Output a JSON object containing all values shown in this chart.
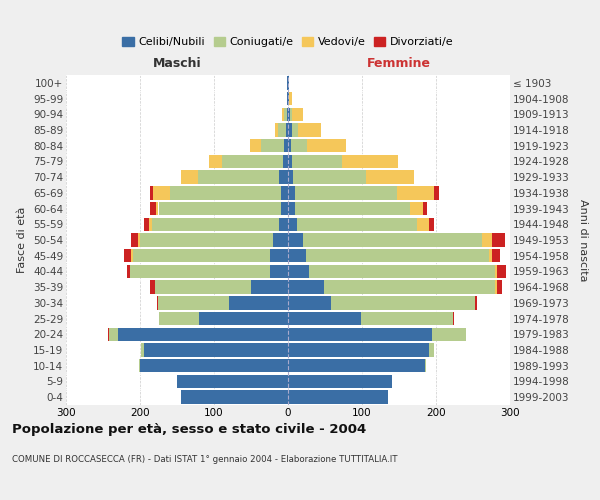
{
  "age_groups": [
    "0-4",
    "5-9",
    "10-14",
    "15-19",
    "20-24",
    "25-29",
    "30-34",
    "35-39",
    "40-44",
    "45-49",
    "50-54",
    "55-59",
    "60-64",
    "65-69",
    "70-74",
    "75-79",
    "80-84",
    "85-89",
    "90-94",
    "95-99",
    "100+"
  ],
  "birth_years": [
    "1999-2003",
    "1994-1998",
    "1989-1993",
    "1984-1988",
    "1979-1983",
    "1974-1978",
    "1969-1973",
    "1964-1968",
    "1959-1963",
    "1954-1958",
    "1949-1953",
    "1944-1948",
    "1939-1943",
    "1934-1938",
    "1929-1933",
    "1924-1928",
    "1919-1923",
    "1914-1918",
    "1909-1913",
    "1904-1908",
    "≤ 1903"
  ],
  "male_celibe": [
    145,
    150,
    200,
    195,
    230,
    120,
    80,
    50,
    25,
    25,
    20,
    12,
    10,
    10,
    12,
    7,
    5,
    3,
    2,
    1,
    1
  ],
  "male_coniugato": [
    0,
    0,
    2,
    4,
    12,
    55,
    95,
    130,
    188,
    185,
    180,
    172,
    165,
    150,
    110,
    82,
    32,
    10,
    4,
    0,
    0
  ],
  "male_vedovo": [
    0,
    0,
    0,
    0,
    0,
    0,
    0,
    0,
    1,
    2,
    3,
    4,
    4,
    22,
    22,
    18,
    15,
    5,
    2,
    0,
    0
  ],
  "male_divorziato": [
    0,
    0,
    0,
    0,
    1,
    1,
    2,
    7,
    4,
    9,
    9,
    7,
    8,
    5,
    0,
    0,
    0,
    0,
    0,
    0,
    0
  ],
  "female_nubile": [
    135,
    140,
    185,
    190,
    195,
    98,
    58,
    48,
    28,
    24,
    20,
    12,
    10,
    9,
    7,
    5,
    4,
    5,
    3,
    2,
    1
  ],
  "female_coniugata": [
    0,
    0,
    2,
    7,
    45,
    125,
    195,
    232,
    252,
    248,
    242,
    162,
    155,
    138,
    98,
    68,
    22,
    8,
    3,
    0,
    0
  ],
  "female_vedova": [
    0,
    0,
    0,
    0,
    0,
    0,
    0,
    2,
    3,
    4,
    13,
    16,
    18,
    50,
    65,
    75,
    52,
    32,
    14,
    4,
    0
  ],
  "female_divorziata": [
    0,
    0,
    0,
    0,
    1,
    1,
    3,
    7,
    11,
    11,
    18,
    7,
    5,
    7,
    0,
    0,
    0,
    0,
    0,
    0,
    0
  ],
  "colors_celibe": "#3a6ea5",
  "colors_coniugato": "#b5cc8e",
  "colors_vedovo": "#f5c75a",
  "colors_divorziato": "#cc2222",
  "xlim": 300,
  "title": "Popolazione per età, sesso e stato civile - 2004",
  "subtitle": "COMUNE DI ROCCASECCA (FR) - Dati ISTAT 1° gennaio 2004 - Elaborazione TUTTITALIA.IT",
  "ylabel_left": "Fasce di età",
  "ylabel_right": "Anni di nascita",
  "label_maschi": "Maschi",
  "label_femmine": "Femmine",
  "bg_color": "#efefef",
  "plot_bg_color": "#ffffff",
  "legend_labels": [
    "Celibi/Nubili",
    "Coniugati/e",
    "Vedovi/e",
    "Divorziati/e"
  ]
}
